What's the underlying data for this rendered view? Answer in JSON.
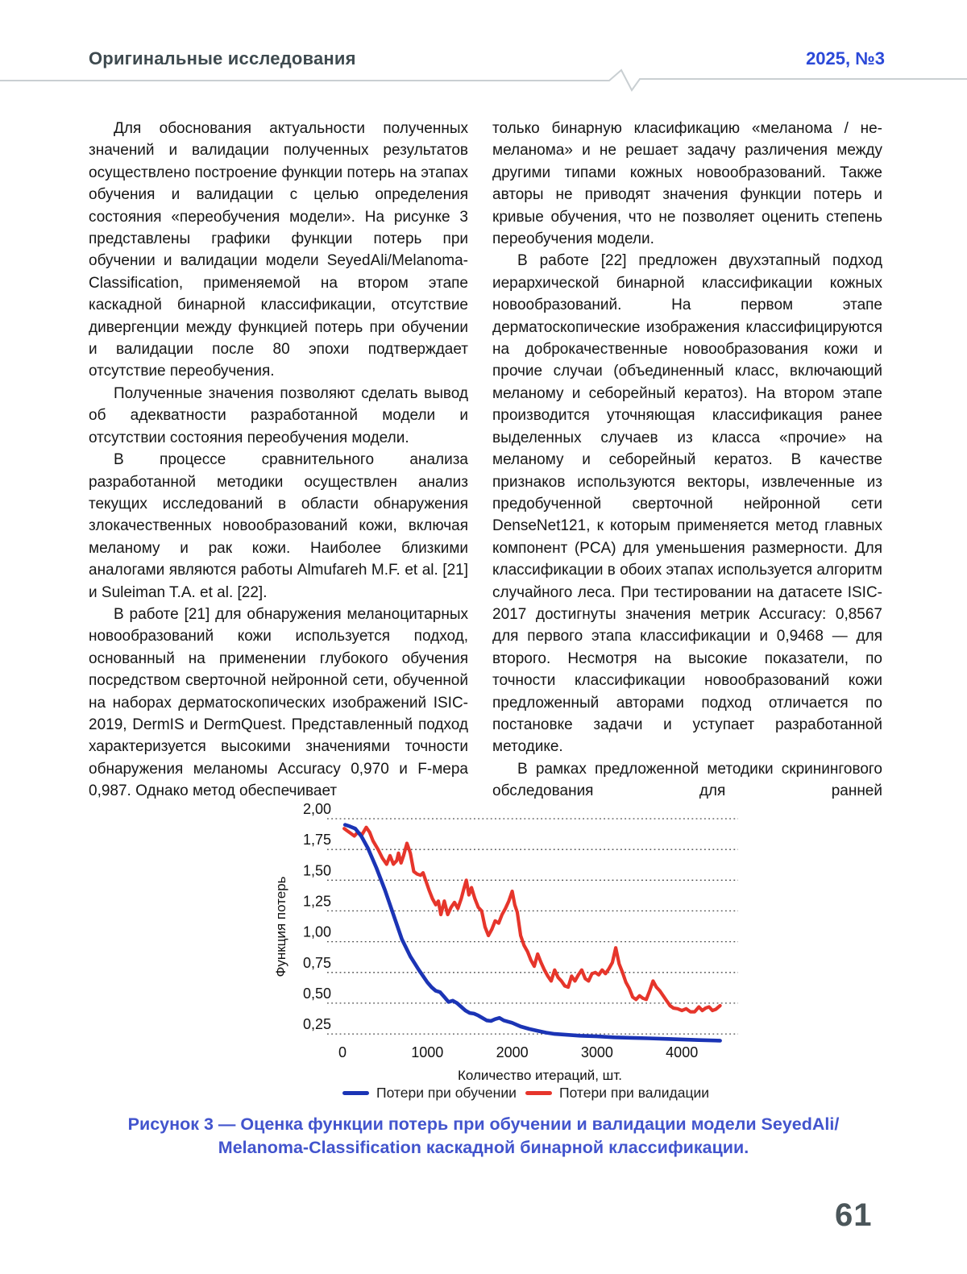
{
  "header": {
    "section": "Оригинальные исследования",
    "issue": "2025, №3"
  },
  "columns": {
    "left": [
      {
        "text": "Для обоснования актуальности полученных значений и валидации полученных результатов осуществлено построение функции потерь на этапах обучения и валидации с целью определения состояния «переобучения модели». На рисунке 3 представлены графики функции потерь при обучении и валидации модели SeyedAli/Melanoma-Classification, применяемой на втором этапе каскадной бинарной классификации, отсутствие дивергенции между функцией потерь при обучении и валидации после 80 эпохи подтверждает отсутствие переобучения.",
        "indent": true
      },
      {
        "text": "Полученные значения позволяют сделать вывод об адекватности разработанной модели и отсутствии состояния переобучения модели.",
        "indent": true
      },
      {
        "text": "В процессе сравнительного анализа разработанной методики осуществлен анализ текущих исследований в области обнаружения злокачественных новообразований кожи, включая меланому и рак кожи. Наиболее близкими аналогами являются работы Almufareh M.F. et al. [21] и Suleiman T.A. et al. [22].",
        "indent": true
      },
      {
        "text": "В работе [21] для обнаружения меланоцитарных новообразований кожи используется подход, основанный на применении глубокого обучения посредством сверточной нейронной сети, обученной на наборах дерматоскопических изображений ISIC-2019, DermIS и DermQuest. Представленный подход характеризуется высокими значениями точности обнаружения меланомы Accuracy 0,970 и F-мера 0,987. Однако метод обеспечивает",
        "indent": true
      }
    ],
    "right": [
      {
        "text": "только бинарную класификацию «меланома / не-меланома» и не решает задачу различения между другими типами кожных новообразований. Также авторы не приводят значения функции потерь и кривые обучения, что не позволяет оценить степень переобучения модели.",
        "indent": false
      },
      {
        "text": "В работе [22] предложен двухэтапный подход иерархической бинарной классификации кожных новообразований. На первом этапе дерматоскопические изображения классифицируются на доброкачественные новообразования кожи и прочие случаи (объединенный класс, включающий меланому и себорейный кератоз). На втором этапе производится уточняющая классификация ранее выделенных случаев из класса «прочие» на меланому и себорейный кератоз. В качестве признаков используются векторы, извлеченные из предобученной сверточной нейронной сети DenseNet121, к которым применяется метод главных компонент (PCA) для уменьшения размерности. Для классификации в обоих этапах используется алгоритм случайного леса. При тестировании на датасете ISIC-2017 достигнуты значения метрик Accuracy: 0,8567 для первого этапа классификации и 0,9468 — для второго. Несмотря на высокие показатели, по точности классификации новообразований кожи предложенный авторами подход отличается по постановке задачи и уступает разработанной методике.",
        "indent": true
      },
      {
        "text": "В рамках предложенной методики скринингового обследования для ранней",
        "indent": true,
        "justify_last": true
      }
    ]
  },
  "figure": {
    "caption_line1": "Рисунок 3 — Оценка функции потерь при обучении и валидации модели SeyedAli/",
    "caption_line2": "Melanoma-Classification каскадной бинарной классификации."
  },
  "footer": {
    "page_number": "61"
  },
  "colors": {
    "header_text": "#3e4a4f",
    "issue_text": "#2b49d8",
    "caption_text": "#4254cd",
    "train_line": "#1b34b5",
    "validation_line": "#e6352b",
    "page_number": "#4b565a"
  },
  "chart_data": {
    "type": "line",
    "title": "",
    "xlabel": "Количество итераций, шт.",
    "ylabel": "Функция потерь",
    "x_ticks": [
      0,
      1000,
      2000,
      3000,
      4000
    ],
    "y_ticks": [
      {
        "label": "2,00",
        "value": 2.0
      },
      {
        "label": "1,75",
        "value": 1.75
      },
      {
        "label": "1,50",
        "value": 1.5
      },
      {
        "label": "1,25",
        "value": 1.25
      },
      {
        "label": "1,00",
        "value": 1.0
      },
      {
        "label": "0,75",
        "value": 0.75
      },
      {
        "label": "0,50",
        "value": 0.5
      },
      {
        "label": "0,25",
        "value": 0.25
      }
    ],
    "xlim": [
      0,
      4500
    ],
    "ylim": [
      0.15,
      2.05
    ],
    "grid": "dotted-horizontal",
    "legend_position": "bottom",
    "series": [
      {
        "name": "Потери при обучении",
        "color": "#1b34b5",
        "width": 4.6,
        "points": [
          [
            30,
            1.95
          ],
          [
            80,
            1.94
          ],
          [
            150,
            1.92
          ],
          [
            220,
            1.86
          ],
          [
            300,
            1.76
          ],
          [
            400,
            1.6
          ],
          [
            500,
            1.42
          ],
          [
            600,
            1.22
          ],
          [
            700,
            1.02
          ],
          [
            800,
            0.88
          ],
          [
            900,
            0.77
          ],
          [
            1000,
            0.67
          ],
          [
            1050,
            0.63
          ],
          [
            1100,
            0.6
          ],
          [
            1150,
            0.59
          ],
          [
            1200,
            0.55
          ],
          [
            1250,
            0.51
          ],
          [
            1300,
            0.52
          ],
          [
            1350,
            0.5
          ],
          [
            1400,
            0.47
          ],
          [
            1450,
            0.44
          ],
          [
            1500,
            0.42
          ],
          [
            1550,
            0.415
          ],
          [
            1600,
            0.4
          ],
          [
            1650,
            0.38
          ],
          [
            1700,
            0.36
          ],
          [
            1750,
            0.355
          ],
          [
            1800,
            0.37
          ],
          [
            1850,
            0.38
          ],
          [
            1900,
            0.36
          ],
          [
            1950,
            0.35
          ],
          [
            2000,
            0.34
          ],
          [
            2100,
            0.31
          ],
          [
            2200,
            0.29
          ],
          [
            2300,
            0.275
          ],
          [
            2400,
            0.26
          ],
          [
            2500,
            0.25
          ],
          [
            2600,
            0.245
          ],
          [
            2800,
            0.235
          ],
          [
            3000,
            0.23
          ],
          [
            3200,
            0.222
          ],
          [
            3400,
            0.218
          ],
          [
            3600,
            0.214
          ],
          [
            3800,
            0.21
          ],
          [
            4000,
            0.205
          ],
          [
            4200,
            0.2
          ],
          [
            4450,
            0.195
          ]
        ]
      },
      {
        "name": "Потери при валидации",
        "color": "#e6352b",
        "width": 4.2,
        "points": [
          [
            20,
            1.92
          ],
          [
            60,
            1.9
          ],
          [
            100,
            1.88
          ],
          [
            140,
            1.86
          ],
          [
            180,
            1.89
          ],
          [
            230,
            1.87
          ],
          [
            280,
            1.93
          ],
          [
            320,
            1.89
          ],
          [
            360,
            1.82
          ],
          [
            420,
            1.75
          ],
          [
            470,
            1.68
          ],
          [
            520,
            1.63
          ],
          [
            560,
            1.7
          ],
          [
            600,
            1.63
          ],
          [
            640,
            1.66
          ],
          [
            660,
            1.72
          ],
          [
            690,
            1.64
          ],
          [
            720,
            1.7
          ],
          [
            760,
            1.8
          ],
          [
            800,
            1.72
          ],
          [
            840,
            1.57
          ],
          [
            880,
            1.55
          ],
          [
            920,
            1.54
          ],
          [
            950,
            1.56
          ],
          [
            980,
            1.5
          ],
          [
            1020,
            1.42
          ],
          [
            1060,
            1.35
          ],
          [
            1100,
            1.3
          ],
          [
            1130,
            1.33
          ],
          [
            1160,
            1.22
          ],
          [
            1200,
            1.33
          ],
          [
            1240,
            1.22
          ],
          [
            1280,
            1.28
          ],
          [
            1320,
            1.32
          ],
          [
            1360,
            1.27
          ],
          [
            1400,
            1.35
          ],
          [
            1430,
            1.43
          ],
          [
            1460,
            1.5
          ],
          [
            1490,
            1.38
          ],
          [
            1520,
            1.44
          ],
          [
            1560,
            1.35
          ],
          [
            1600,
            1.28
          ],
          [
            1640,
            1.25
          ],
          [
            1680,
            1.12
          ],
          [
            1720,
            1.05
          ],
          [
            1760,
            1.1
          ],
          [
            1800,
            1.17
          ],
          [
            1840,
            1.15
          ],
          [
            1880,
            1.22
          ],
          [
            1920,
            1.27
          ],
          [
            1960,
            1.33
          ],
          [
            2000,
            1.41
          ],
          [
            2030,
            1.3
          ],
          [
            2060,
            1.24
          ],
          [
            2100,
            1.05
          ],
          [
            2140,
            0.97
          ],
          [
            2180,
            0.92
          ],
          [
            2220,
            0.85
          ],
          [
            2260,
            0.8
          ],
          [
            2300,
            0.9
          ],
          [
            2340,
            0.83
          ],
          [
            2380,
            0.77
          ],
          [
            2420,
            0.72
          ],
          [
            2460,
            0.68
          ],
          [
            2500,
            0.77
          ],
          [
            2540,
            0.71
          ],
          [
            2580,
            0.68
          ],
          [
            2620,
            0.64
          ],
          [
            2660,
            0.63
          ],
          [
            2700,
            0.72
          ],
          [
            2740,
            0.68
          ],
          [
            2780,
            0.73
          ],
          [
            2820,
            0.77
          ],
          [
            2860,
            0.7
          ],
          [
            2900,
            0.68
          ],
          [
            2940,
            0.74
          ],
          [
            2980,
            0.75
          ],
          [
            3020,
            0.73
          ],
          [
            3060,
            0.77
          ],
          [
            3100,
            0.74
          ],
          [
            3140,
            0.78
          ],
          [
            3180,
            0.83
          ],
          [
            3220,
            0.95
          ],
          [
            3260,
            0.82
          ],
          [
            3300,
            0.75
          ],
          [
            3340,
            0.67
          ],
          [
            3380,
            0.62
          ],
          [
            3420,
            0.55
          ],
          [
            3460,
            0.53
          ],
          [
            3500,
            0.56
          ],
          [
            3540,
            0.54
          ],
          [
            3580,
            0.53
          ],
          [
            3620,
            0.6
          ],
          [
            3660,
            0.68
          ],
          [
            3700,
            0.63
          ],
          [
            3740,
            0.6
          ],
          [
            3780,
            0.56
          ],
          [
            3820,
            0.52
          ],
          [
            3860,
            0.48
          ],
          [
            3900,
            0.46
          ],
          [
            3950,
            0.455
          ],
          [
            4000,
            0.44
          ],
          [
            4050,
            0.455
          ],
          [
            4100,
            0.43
          ],
          [
            4150,
            0.43
          ],
          [
            4200,
            0.47
          ],
          [
            4240,
            0.44
          ],
          [
            4280,
            0.46
          ],
          [
            4320,
            0.47
          ],
          [
            4360,
            0.44
          ],
          [
            4400,
            0.45
          ],
          [
            4450,
            0.48
          ]
        ]
      }
    ]
  }
}
